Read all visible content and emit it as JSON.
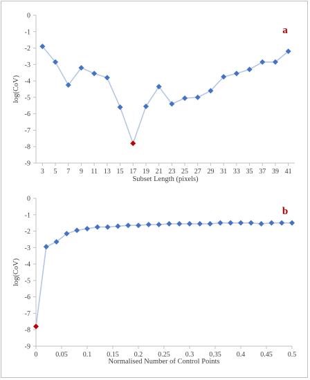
{
  "colors": {
    "series": "#4472C4",
    "line": "#B4C7E7",
    "highlight": "#C00000",
    "label": "#C00000",
    "axis": "#BFBFBF"
  },
  "chart_data": [
    {
      "type": "line",
      "panel_label": "a",
      "xlabel": "Subset Length (pixels)",
      "ylabel": "log(CoV)",
      "ylim": [
        -9,
        0
      ],
      "yticks": [
        0,
        -1,
        -2,
        -3,
        -4,
        -5,
        -6,
        -7,
        -8,
        -9
      ],
      "x_tick_labels": [
        "3",
        "5",
        "7",
        "9",
        "11",
        "13",
        "15",
        "17",
        "19",
        "21",
        "23",
        "25",
        "27",
        "29",
        "31",
        "33",
        "35",
        "37",
        "39",
        "41"
      ],
      "grid": false,
      "x": [
        3,
        5,
        7,
        9,
        11,
        13,
        15,
        17,
        19,
        21,
        23,
        25,
        27,
        29,
        31,
        33,
        35,
        37,
        39,
        41
      ],
      "y": [
        -1.9,
        -2.85,
        -4.25,
        -3.2,
        -3.55,
        -3.8,
        -5.6,
        -7.8,
        -5.55,
        -4.35,
        -5.4,
        -5.05,
        -5.0,
        -4.6,
        -3.75,
        -3.55,
        -3.3,
        -2.85,
        -2.85,
        -2.2
      ],
      "highlight_index": 7
    },
    {
      "type": "line",
      "panel_label": "b",
      "xlabel": "Normalised Number of Control Points",
      "ylabel": "log(CoV)",
      "ylim": [
        -9,
        0
      ],
      "xlim": [
        0,
        0.5
      ],
      "yticks": [
        0,
        -1,
        -2,
        -3,
        -4,
        -5,
        -6,
        -7,
        -8,
        -9
      ],
      "xticks": [
        0,
        0.05,
        0.1,
        0.15,
        0.2,
        0.25,
        0.3,
        0.35,
        0.4,
        0.45,
        0.5
      ],
      "x_tick_labels": [
        "0",
        "0.05",
        "0.1",
        "0.15",
        "0.2",
        "0.25",
        "0.3",
        "0.35",
        "0.4",
        "0.45",
        "0.5"
      ],
      "grid": false,
      "x": [
        0,
        0.02,
        0.04,
        0.06,
        0.08,
        0.1,
        0.12,
        0.14,
        0.16,
        0.18,
        0.2,
        0.22,
        0.24,
        0.26,
        0.28,
        0.3,
        0.32,
        0.34,
        0.36,
        0.38,
        0.4,
        0.42,
        0.44,
        0.46,
        0.48,
        0.5
      ],
      "y": [
        -7.8,
        -2.95,
        -2.65,
        -2.15,
        -1.95,
        -1.85,
        -1.75,
        -1.75,
        -1.7,
        -1.65,
        -1.65,
        -1.6,
        -1.6,
        -1.55,
        -1.55,
        -1.55,
        -1.55,
        -1.55,
        -1.5,
        -1.5,
        -1.5,
        -1.5,
        -1.55,
        -1.5,
        -1.5,
        -1.5
      ],
      "highlight_index": 0
    }
  ]
}
